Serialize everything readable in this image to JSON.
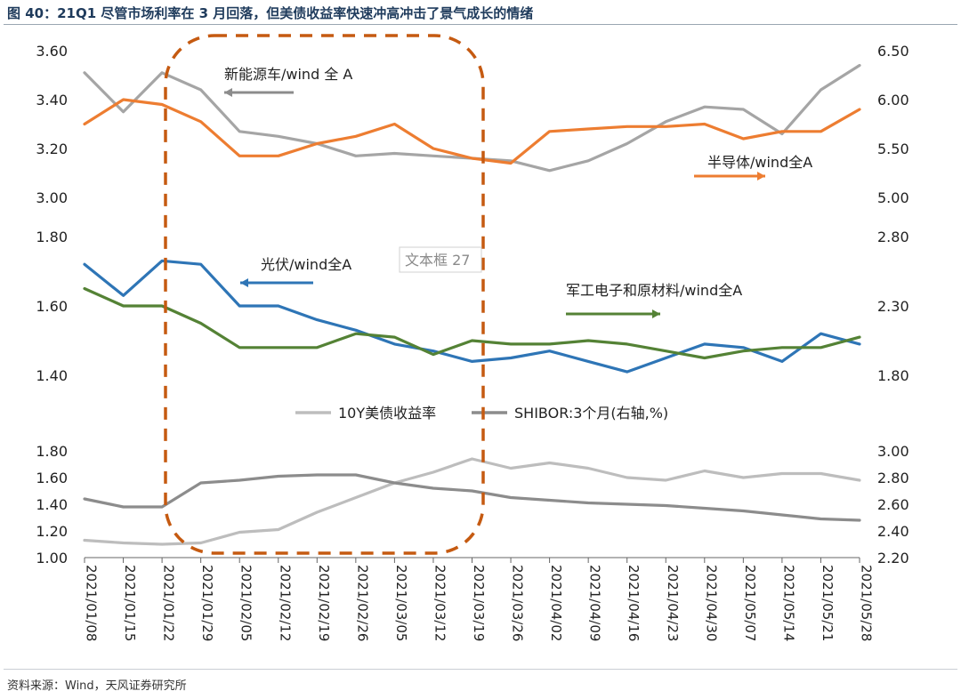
{
  "title": "图 40：21Q1 尽管市场利率在 3 月回落，但美债收益率快速冲高冲击了景气成长的情绪",
  "source": "资料来源：Wind，天风证券研究所",
  "textbox_label": "文本框 27",
  "colors": {
    "gray_dark": "#8c8c8c",
    "gray_light": "#bdbdbd",
    "orange": "#ed7d31",
    "blue": "#2e75b6",
    "green": "#548235",
    "dash_box": "#c55a11"
  },
  "chart_data": {
    "type": "line",
    "categories": [
      "2021/01/08",
      "2021/01/15",
      "2021/01/22",
      "2021/01/29",
      "2021/02/05",
      "2021/02/12",
      "2021/02/19",
      "2021/02/26",
      "2021/03/05",
      "2021/03/12",
      "2021/03/19",
      "2021/03/26",
      "2021/04/02",
      "2021/04/09",
      "2021/04/16",
      "2021/04/23",
      "2021/04/30",
      "2021/05/07",
      "2021/05/14",
      "2021/05/21",
      "2021/05/28"
    ],
    "panels": [
      {
        "id": "top",
        "left_ticks": [
          "3.60",
          "3.40",
          "3.20",
          "3.00"
        ],
        "right_ticks": [
          "6.50",
          "6.00",
          "5.50",
          "5.00"
        ],
        "ylim_left": [
          3.0,
          3.6
        ],
        "ylim_right": [
          5.0,
          6.5
        ],
        "series": [
          {
            "name": "新能源车/wind 全 A",
            "axis": "left",
            "color": "#a5a5a5",
            "values": [
              3.51,
              3.35,
              3.51,
              3.44,
              3.27,
              3.25,
              3.22,
              3.17,
              3.18,
              3.17,
              3.16,
              3.15,
              3.11,
              3.15,
              3.22,
              3.31,
              3.37,
              3.36,
              3.26,
              3.44,
              3.54
            ]
          },
          {
            "name": "半导体/wind全A",
            "axis": "left",
            "color": "#ed7d31",
            "values": [
              3.3,
              3.4,
              3.38,
              3.31,
              3.17,
              3.17,
              3.22,
              3.25,
              3.3,
              3.2,
              3.16,
              3.14,
              3.27,
              3.28,
              3.29,
              3.29,
              3.3,
              3.24,
              3.27,
              3.27,
              3.36
            ]
          }
        ],
        "annotations": [
          {
            "text": "新能源车/wind 全 A",
            "arrow": "left",
            "color": "#8c8c8c"
          },
          {
            "text": "半导体/wind全A",
            "arrow": "right",
            "color": "#ed7d31"
          }
        ]
      },
      {
        "id": "middle",
        "left_ticks": [
          "1.80",
          "1.60",
          "1.40"
        ],
        "right_ticks": [
          "2.80",
          "2.30",
          "1.80"
        ],
        "ylim_left": [
          1.4,
          1.8
        ],
        "ylim_right": [
          1.8,
          2.8
        ],
        "series": [
          {
            "name": "光伏/wind全A",
            "axis": "left",
            "color": "#2e75b6",
            "values": [
              1.72,
              1.63,
              1.73,
              1.72,
              1.6,
              1.6,
              1.56,
              1.53,
              1.49,
              1.47,
              1.44,
              1.45,
              1.47,
              1.44,
              1.41,
              1.45,
              1.49,
              1.48,
              1.44,
              1.52,
              1.49
            ]
          },
          {
            "name": "军工电子和原材料/wind全A",
            "axis": "left",
            "color": "#548235",
            "values": [
              1.65,
              1.6,
              1.6,
              1.55,
              1.48,
              1.48,
              1.48,
              1.52,
              1.51,
              1.46,
              1.5,
              1.49,
              1.49,
              1.5,
              1.49,
              1.47,
              1.45,
              1.47,
              1.48,
              1.48,
              1.51
            ]
          }
        ],
        "annotations": [
          {
            "text": "光伏/wind全A",
            "arrow": "left",
            "color": "#2e75b6"
          },
          {
            "text": "军工电子和原材料/wind全A",
            "arrow": "right",
            "color": "#548235"
          }
        ]
      },
      {
        "id": "bottom",
        "left_ticks": [
          "1.80",
          "1.60",
          "1.40",
          "1.20",
          "1.00"
        ],
        "right_ticks": [
          "3.00",
          "2.80",
          "2.60",
          "2.40",
          "2.20"
        ],
        "ylim_left": [
          1.0,
          1.8
        ],
        "ylim_right": [
          2.2,
          3.0
        ],
        "legend": [
          {
            "name": "10Y美债收益率",
            "color": "#bdbdbd"
          },
          {
            "name": "SHIBOR:3个月(右轴,%)",
            "color": "#8c8c8c"
          }
        ],
        "series": [
          {
            "name": "10Y美债收益率",
            "axis": "left",
            "color": "#bdbdbd",
            "values": [
              1.13,
              1.11,
              1.1,
              1.11,
              1.19,
              1.21,
              1.34,
              1.45,
              1.56,
              1.64,
              1.74,
              1.67,
              1.71,
              1.67,
              1.6,
              1.58,
              1.65,
              1.6,
              1.63,
              1.63,
              1.58
            ]
          },
          {
            "name": "SHIBOR:3个月(右轴,%)",
            "axis": "right",
            "color": "#8c8c8c",
            "values": [
              2.64,
              2.58,
              2.58,
              2.76,
              2.78,
              2.81,
              2.82,
              2.82,
              2.76,
              2.72,
              2.7,
              2.65,
              2.63,
              2.61,
              2.6,
              2.59,
              2.57,
              2.55,
              2.52,
              2.49,
              2.48
            ]
          }
        ]
      }
    ]
  }
}
